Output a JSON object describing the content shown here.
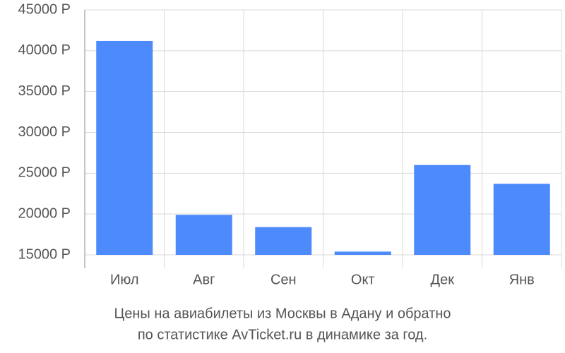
{
  "chart_data": {
    "type": "bar",
    "title": "Цены на авиабилеты из Москвы в Адану и обратно",
    "subtitle": "по статистике AvTicket.ru в динамике за год.",
    "categories": [
      "Июл",
      "Авг",
      "Сен",
      "Окт",
      "Дек",
      "Янв"
    ],
    "values": [
      41200,
      19900,
      18400,
      15400,
      26000,
      23700
    ],
    "color": "#4d8afc",
    "ylim": [
      15000,
      45000
    ],
    "yticks": [
      {
        "value": 15000,
        "label": "15000 Р"
      },
      {
        "value": 20000,
        "label": "20000 Р"
      },
      {
        "value": 25000,
        "label": "25000 Р"
      },
      {
        "value": 30000,
        "label": "30000 Р"
      },
      {
        "value": 35000,
        "label": "35000 Р"
      },
      {
        "value": 40000,
        "label": "40000 Р"
      },
      {
        "value": 45000,
        "label": "45000 Р"
      }
    ],
    "grid": true
  }
}
